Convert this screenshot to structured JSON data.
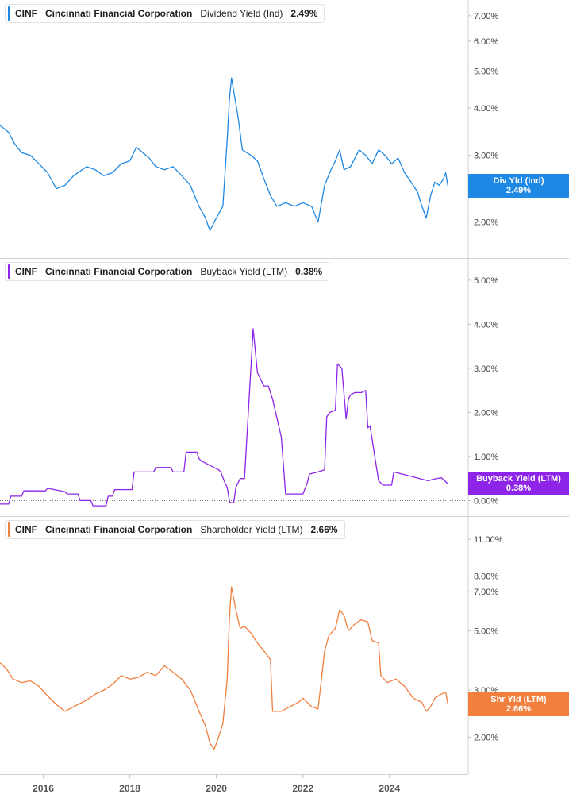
{
  "chart_data": [
    {
      "type": "line",
      "scale": "log",
      "ticker": "CINF",
      "company": "Cincinnati Financial Corporation",
      "metric": "Dividend Yield (Ind)",
      "value_label": "2.49%",
      "flag_label": "Div Yld (Ind)",
      "color": "#1e88e5",
      "yticks": [
        2,
        3,
        4,
        5,
        6,
        7
      ],
      "ytick_labels": [
        "2.00%",
        "3.00%",
        "4.00%",
        "5.00%",
        "6.00%",
        "7.00%"
      ],
      "ylim": [
        1.72,
        7.2
      ],
      "baseline": null,
      "x": [
        2015.0,
        2015.2,
        2015.35,
        2015.5,
        2015.7,
        2015.9,
        2016.1,
        2016.3,
        2016.5,
        2016.7,
        2016.9,
        2017.0,
        2017.2,
        2017.4,
        2017.6,
        2017.8,
        2018.0,
        2018.15,
        2018.3,
        2018.45,
        2018.6,
        2018.8,
        2019.0,
        2019.2,
        2019.4,
        2019.6,
        2019.75,
        2019.85,
        2019.95,
        2020.05,
        2020.15,
        2020.25,
        2020.3,
        2020.35,
        2020.42,
        2020.5,
        2020.6,
        2020.7,
        2020.8,
        2020.95,
        2021.1,
        2021.25,
        2021.4,
        2021.6,
        2021.8,
        2022.0,
        2022.2,
        2022.35,
        2022.5,
        2022.65,
        2022.75,
        2022.85,
        2022.95,
        2023.1,
        2023.3,
        2023.45,
        2023.6,
        2023.75,
        2023.9,
        2024.05,
        2024.2,
        2024.35,
        2024.5,
        2024.65,
        2024.75,
        2024.85,
        2024.95,
        2025.05,
        2025.15,
        2025.25,
        2025.3,
        2025.35
      ],
      "y": [
        3.6,
        3.45,
        3.2,
        3.05,
        3.0,
        2.85,
        2.7,
        2.45,
        2.5,
        2.65,
        2.75,
        2.8,
        2.75,
        2.65,
        2.7,
        2.85,
        2.9,
        3.15,
        3.05,
        2.95,
        2.8,
        2.75,
        2.8,
        2.65,
        2.5,
        2.2,
        2.05,
        1.9,
        2.0,
        2.1,
        2.2,
        3.3,
        4.2,
        4.8,
        4.3,
        3.8,
        3.1,
        3.05,
        3.0,
        2.9,
        2.6,
        2.35,
        2.2,
        2.25,
        2.2,
        2.25,
        2.2,
        2.0,
        2.5,
        2.75,
        2.9,
        3.1,
        2.75,
        2.8,
        3.1,
        3.0,
        2.85,
        3.1,
        3.0,
        2.85,
        2.95,
        2.7,
        2.55,
        2.4,
        2.2,
        2.05,
        2.35,
        2.55,
        2.5,
        2.6,
        2.7,
        2.49
      ]
    },
    {
      "type": "line",
      "scale": "linear",
      "ticker": "CINF",
      "company": "Cincinnati Financial Corporation",
      "metric": "Buyback Yield (LTM)",
      "value_label": "0.38%",
      "flag_label": "Buyback Yield (LTM)",
      "color": "#8e24e8",
      "yticks": [
        0,
        1,
        2,
        3,
        4,
        5
      ],
      "ytick_labels": [
        "0.00%",
        "1.00%",
        "2.00%",
        "3.00%",
        "4.00%",
        "5.00%"
      ],
      "ylim": [
        -0.1,
        5.25
      ],
      "baseline": 0,
      "x": [
        2015.0,
        2015.2,
        2015.25,
        2015.5,
        2015.55,
        2016.05,
        2016.1,
        2016.5,
        2016.55,
        2016.8,
        2016.85,
        2017.1,
        2017.15,
        2017.45,
        2017.5,
        2017.6,
        2017.65,
        2018.05,
        2018.1,
        2018.55,
        2018.6,
        2018.95,
        2019.0,
        2019.25,
        2019.3,
        2019.55,
        2019.6,
        2019.65,
        2020.05,
        2020.1,
        2020.2,
        2020.25,
        2020.3,
        2020.32,
        2020.35,
        2020.4,
        2020.45,
        2020.55,
        2020.65,
        2020.85,
        2020.95,
        2021.1,
        2021.2,
        2021.25,
        2021.3,
        2021.5,
        2021.6,
        2021.9,
        2022.0,
        2022.1,
        2022.15,
        2022.35,
        2022.5,
        2022.55,
        2022.62,
        2022.75,
        2022.8,
        2022.85,
        2022.9,
        2023.0,
        2023.05,
        2023.1,
        2023.2,
        2023.35,
        2023.45,
        2023.5,
        2023.55,
        2023.75,
        2023.8,
        2023.85,
        2024.05,
        2024.1,
        2024.3,
        2024.5,
        2024.7,
        2024.9,
        2025.0,
        2025.2,
        2025.35
      ],
      "y": [
        -0.08,
        -0.08,
        0.1,
        0.1,
        0.22,
        0.22,
        0.28,
        0.2,
        0.15,
        0.15,
        0.0,
        0.0,
        -0.12,
        -0.12,
        0.1,
        0.1,
        0.25,
        0.25,
        0.65,
        0.65,
        0.75,
        0.75,
        0.65,
        0.65,
        1.1,
        1.1,
        0.95,
        0.9,
        0.7,
        0.65,
        0.4,
        0.3,
        0.0,
        -0.05,
        -0.05,
        -0.05,
        0.3,
        0.5,
        0.5,
        3.9,
        2.9,
        2.6,
        2.6,
        2.45,
        2.3,
        1.45,
        0.15,
        0.15,
        0.15,
        0.4,
        0.6,
        0.65,
        0.7,
        1.9,
        2.0,
        2.05,
        3.1,
        3.05,
        3.0,
        1.85,
        2.3,
        2.4,
        2.45,
        2.45,
        2.5,
        1.65,
        1.7,
        0.45,
        0.4,
        0.35,
        0.35,
        0.65,
        0.6,
        0.55,
        0.5,
        0.45,
        0.48,
        0.52,
        0.38
      ]
    },
    {
      "type": "line",
      "scale": "log",
      "ticker": "CINF",
      "company": "Cincinnati Financial Corporation",
      "metric": "Shareholder Yield (LTM)",
      "value_label": "2.66%",
      "flag_label": "Shr Yld (LTM)",
      "color": "#f17f3e",
      "yticks": [
        2,
        3,
        5,
        7,
        8,
        11
      ],
      "ytick_labels": [
        "2.00%",
        "3.00%",
        "5.00%",
        "7.00%",
        "8.00%",
        "11.00%"
      ],
      "ylim": [
        1.6,
        12.2
      ],
      "baseline": null,
      "x": [
        2015.0,
        2015.15,
        2015.3,
        2015.5,
        2015.7,
        2015.9,
        2016.1,
        2016.3,
        2016.5,
        2016.7,
        2016.9,
        2017.0,
        2017.2,
        2017.4,
        2017.6,
        2017.8,
        2018.0,
        2018.2,
        2018.4,
        2018.6,
        2018.8,
        2019.0,
        2019.2,
        2019.4,
        2019.6,
        2019.75,
        2019.85,
        2019.95,
        2020.05,
        2020.15,
        2020.25,
        2020.3,
        2020.35,
        2020.45,
        2020.55,
        2020.65,
        2020.8,
        2020.95,
        2021.1,
        2021.25,
        2021.3,
        2021.5,
        2021.7,
        2021.9,
        2022.0,
        2022.2,
        2022.35,
        2022.5,
        2022.6,
        2022.75,
        2022.85,
        2022.95,
        2023.05,
        2023.2,
        2023.35,
        2023.5,
        2023.6,
        2023.75,
        2023.8,
        2023.95,
        2024.15,
        2024.35,
        2024.55,
        2024.75,
        2024.85,
        2024.95,
        2025.05,
        2025.2,
        2025.3,
        2025.35
      ],
      "y": [
        3.8,
        3.6,
        3.3,
        3.2,
        3.25,
        3.1,
        2.85,
        2.65,
        2.5,
        2.6,
        2.7,
        2.75,
        2.9,
        3.0,
        3.15,
        3.4,
        3.3,
        3.35,
        3.5,
        3.4,
        3.7,
        3.5,
        3.3,
        3.0,
        2.5,
        2.2,
        1.9,
        1.8,
        2.0,
        2.25,
        3.3,
        5.5,
        7.3,
        6.0,
        5.1,
        5.2,
        4.9,
        4.5,
        4.2,
        3.9,
        2.5,
        2.5,
        2.6,
        2.7,
        2.8,
        2.6,
        2.55,
        4.2,
        4.8,
        5.1,
        6.0,
        5.7,
        5.0,
        5.3,
        5.5,
        5.4,
        4.6,
        4.5,
        3.4,
        3.2,
        3.3,
        3.1,
        2.8,
        2.7,
        2.5,
        2.6,
        2.8,
        2.9,
        2.95,
        2.66
      ]
    }
  ],
  "x_axis": {
    "ticks": [
      2016,
      2018,
      2020,
      2022,
      2024
    ],
    "tick_labels": [
      "2016",
      "2018",
      "2020",
      "2022",
      "2024"
    ],
    "range": [
      2015.0,
      2025.82
    ]
  },
  "grid": false
}
